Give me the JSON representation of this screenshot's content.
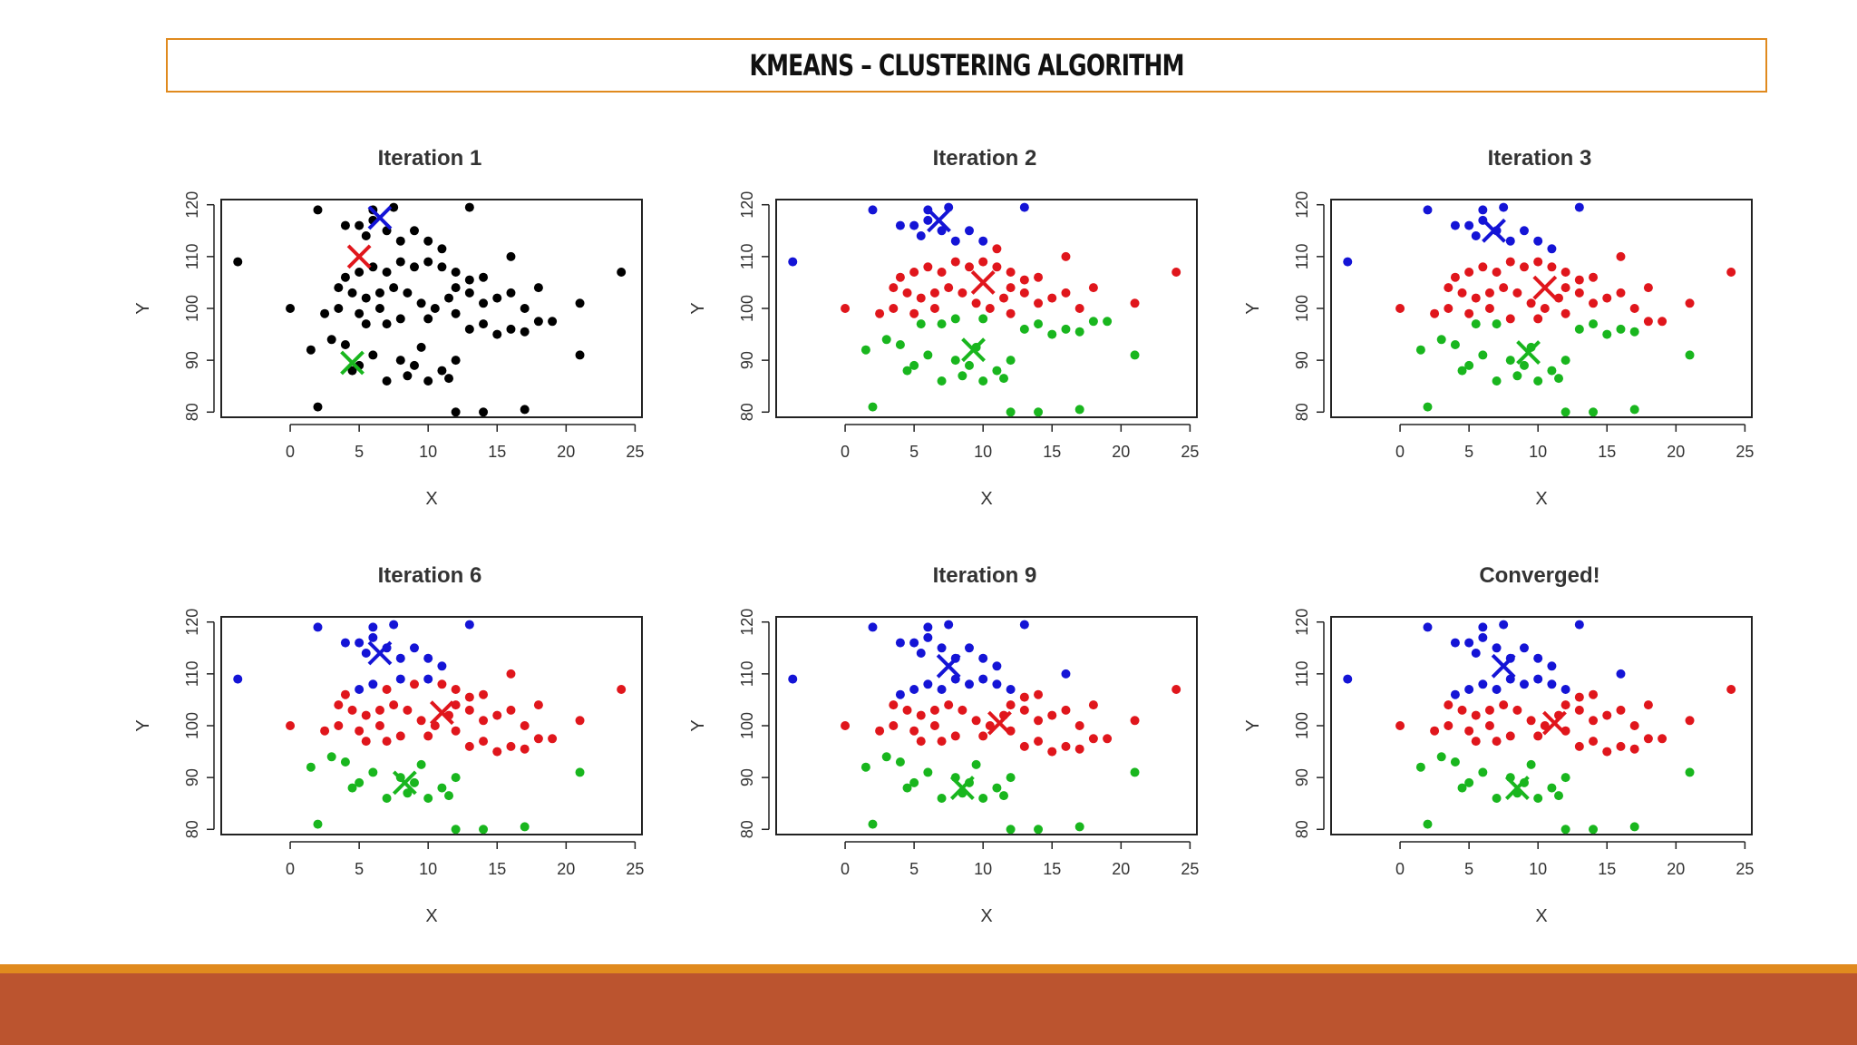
{
  "slide_title": "KMEANS – CLUSTERING ALGORITHM",
  "colors": {
    "black": "#000000",
    "red": "#e0161c",
    "blue": "#1414d6",
    "green": "#19b61e",
    "title_border": "#e08a1e",
    "footer": "#bb542f"
  },
  "chart_data": [
    {
      "type": "scatter",
      "title": "Iteration 1",
      "xlabel": "X",
      "ylabel": "Y",
      "xlim": [
        -5,
        25.5
      ],
      "ylim": [
        79,
        121
      ],
      "xticks": [
        "0",
        "5",
        "10",
        "15",
        "20",
        "25"
      ],
      "yticks": [
        "80",
        "90",
        "100",
        "110",
        "120"
      ],
      "centroids": [
        {
          "color": "red",
          "x": 5,
          "y": 110
        },
        {
          "color": "blue",
          "x": 6.5,
          "y": 117.5
        },
        {
          "color": "green",
          "x": 4.5,
          "y": 89.5
        }
      ]
    },
    {
      "type": "scatter",
      "title": "Iteration 2",
      "xlabel": "X",
      "ylabel": "Y",
      "xlim": [
        -5,
        25.5
      ],
      "ylim": [
        79,
        121
      ],
      "xticks": [
        "0",
        "5",
        "10",
        "15",
        "20",
        "25"
      ],
      "yticks": [
        "80",
        "90",
        "100",
        "110",
        "120"
      ],
      "centroids": [
        {
          "color": "red",
          "x": 10,
          "y": 105
        },
        {
          "color": "blue",
          "x": 6.8,
          "y": 117
        },
        {
          "color": "green",
          "x": 9.3,
          "y": 92
        }
      ]
    },
    {
      "type": "scatter",
      "title": "Iteration 3",
      "xlabel": "X",
      "ylabel": "Y",
      "xlim": [
        -5,
        25.5
      ],
      "ylim": [
        79,
        121
      ],
      "xticks": [
        "0",
        "5",
        "10",
        "15",
        "20",
        "25"
      ],
      "yticks": [
        "80",
        "90",
        "100",
        "110",
        "120"
      ],
      "centroids": [
        {
          "color": "red",
          "x": 10.5,
          "y": 104
        },
        {
          "color": "blue",
          "x": 6.8,
          "y": 115
        },
        {
          "color": "green",
          "x": 9.3,
          "y": 91.5
        }
      ]
    },
    {
      "type": "scatter",
      "title": "Iteration 6",
      "xlabel": "X",
      "ylabel": "Y",
      "xlim": [
        -5,
        25.5
      ],
      "ylim": [
        79,
        121
      ],
      "xticks": [
        "0",
        "5",
        "10",
        "15",
        "20",
        "25"
      ],
      "yticks": [
        "80",
        "90",
        "100",
        "110",
        "120"
      ],
      "centroids": [
        {
          "color": "red",
          "x": 11,
          "y": 102.5
        },
        {
          "color": "blue",
          "x": 6.5,
          "y": 114
        },
        {
          "color": "green",
          "x": 8.3,
          "y": 89
        }
      ]
    },
    {
      "type": "scatter",
      "title": "Iteration 9",
      "xlabel": "X",
      "ylabel": "Y",
      "xlim": [
        -5,
        25.5
      ],
      "ylim": [
        79,
        121
      ],
      "xticks": [
        "0",
        "5",
        "10",
        "15",
        "20",
        "25"
      ],
      "yticks": [
        "80",
        "90",
        "100",
        "110",
        "120"
      ],
      "centroids": [
        {
          "color": "red",
          "x": 11.2,
          "y": 100.5
        },
        {
          "color": "blue",
          "x": 7.5,
          "y": 111.5
        },
        {
          "color": "green",
          "x": 8.5,
          "y": 88
        }
      ]
    },
    {
      "type": "scatter",
      "title": "Converged!",
      "xlabel": "X",
      "ylabel": "Y",
      "xlim": [
        -5,
        25.5
      ],
      "ylim": [
        79,
        121
      ],
      "xticks": [
        "0",
        "5",
        "10",
        "15",
        "20",
        "25"
      ],
      "yticks": [
        "80",
        "90",
        "100",
        "110",
        "120"
      ],
      "centroids": [
        {
          "color": "red",
          "x": 11.2,
          "y": 100.5
        },
        {
          "color": "blue",
          "x": 7.5,
          "y": 111.5
        },
        {
          "color": "green",
          "x": 8.5,
          "y": 88
        }
      ]
    }
  ],
  "points": [
    [
      -3.8,
      109
    ],
    [
      0,
      100
    ],
    [
      2,
      119
    ],
    [
      13,
      119.5
    ],
    [
      6,
      119
    ],
    [
      7.5,
      119.5
    ],
    [
      4,
      116
    ],
    [
      5,
      116
    ],
    [
      6,
      117
    ],
    [
      5.5,
      114
    ],
    [
      7,
      115
    ],
    [
      8,
      113
    ],
    [
      9,
      115
    ],
    [
      10,
      113
    ],
    [
      11,
      111.5
    ],
    [
      16,
      110
    ],
    [
      3.5,
      104
    ],
    [
      4.5,
      103
    ],
    [
      5.5,
      102
    ],
    [
      6.5,
      103
    ],
    [
      7.5,
      104
    ],
    [
      8.5,
      103
    ],
    [
      9.5,
      101
    ],
    [
      10.5,
      100
    ],
    [
      11.5,
      102
    ],
    [
      12,
      104
    ],
    [
      13,
      103
    ],
    [
      14,
      101
    ],
    [
      15,
      102
    ],
    [
      16,
      103
    ],
    [
      17,
      100
    ],
    [
      18,
      104
    ],
    [
      19,
      97.5
    ],
    [
      21,
      101
    ],
    [
      4,
      106
    ],
    [
      5,
      107
    ],
    [
      6,
      108
    ],
    [
      7,
      107
    ],
    [
      8,
      109
    ],
    [
      9,
      108
    ],
    [
      10,
      109
    ],
    [
      11,
      108
    ],
    [
      12,
      107
    ],
    [
      13,
      105.5
    ],
    [
      14,
      106
    ],
    [
      2.5,
      99
    ],
    [
      3.5,
      100
    ],
    [
      5,
      99
    ],
    [
      6.5,
      100
    ],
    [
      8,
      98
    ],
    [
      10,
      98
    ],
    [
      12,
      99
    ],
    [
      13,
      96
    ],
    [
      14,
      97
    ],
    [
      15,
      95
    ],
    [
      17,
      95.5
    ],
    [
      24,
      107
    ],
    [
      1.5,
      92
    ],
    [
      3,
      94
    ],
    [
      4,
      93
    ],
    [
      4.5,
      88
    ],
    [
      5,
      89
    ],
    [
      6,
      91
    ],
    [
      7,
      86
    ],
    [
      8,
      90
    ],
    [
      9,
      89
    ],
    [
      10,
      86
    ],
    [
      11,
      88
    ],
    [
      12,
      90
    ],
    [
      2,
      81
    ],
    [
      12,
      80
    ],
    [
      14,
      80
    ],
    [
      17,
      80.5
    ],
    [
      21,
      91
    ],
    [
      18,
      97.5
    ],
    [
      16,
      96
    ],
    [
      7,
      97
    ],
    [
      5.5,
      97
    ],
    [
      9.5,
      92.5
    ],
    [
      8.5,
      87
    ],
    [
      11.5,
      86.5
    ]
  ]
}
